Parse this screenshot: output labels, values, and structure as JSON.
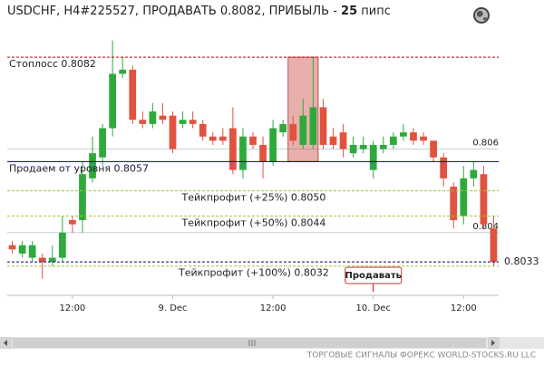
{
  "chart_data": {
    "type": "candlestick",
    "title": "USDCHF, H4#225527, ПРОДАВАТЬ 0.8082, ПРИБЫЛЬ - ",
    "title_bold": "25",
    "title_suffix": " пипс",
    "categories": [
      null,
      null,
      null,
      null,
      null,
      null,
      "12:00",
      null,
      null,
      null,
      null,
      null,
      null,
      null,
      null,
      null,
      "9. Dec",
      null,
      null,
      null,
      null,
      null,
      null,
      null,
      null,
      null,
      "12:00",
      null,
      null,
      null,
      null,
      null,
      null,
      null,
      null,
      null,
      "10. Dec",
      null,
      null,
      null,
      null,
      null,
      null,
      null,
      null,
      "12:00",
      null,
      null,
      null
    ],
    "open": [
      0.8037,
      0.8035,
      0.8034,
      0.8034,
      0.8033,
      0.8034,
      0.8043,
      0.8043,
      0.8053,
      0.8058,
      0.8065,
      0.8078,
      0.8079,
      0.8067,
      0.8066,
      0.8068,
      0.8068,
      0.8066,
      0.8067,
      0.8066,
      0.8063,
      0.8063,
      0.8065,
      0.8055,
      0.8063,
      0.8061,
      0.8057,
      0.8064,
      0.8066,
      0.8061,
      0.8061,
      0.807,
      0.8063,
      0.8064,
      0.8059,
      0.806,
      0.8055,
      0.806,
      0.8061,
      0.8063,
      0.8064,
      0.8063,
      0.8062,
      0.8058,
      0.8051,
      0.8044,
      0.8053,
      0.8054,
      0.8041
    ],
    "high": [
      0.8038,
      0.8038,
      0.8038,
      0.8035,
      0.8037,
      0.8044,
      0.8044,
      0.8057,
      0.8063,
      0.8066,
      0.8086,
      0.8082,
      0.808,
      0.8069,
      0.8071,
      0.8071,
      0.8069,
      0.8069,
      0.8069,
      0.8067,
      0.8064,
      0.8065,
      0.807,
      0.8065,
      0.8064,
      0.8063,
      0.8067,
      0.8067,
      0.8068,
      0.8072,
      0.8082,
      0.8072,
      0.8065,
      0.8066,
      0.8063,
      0.8063,
      0.8062,
      0.8063,
      0.8064,
      0.8066,
      0.8065,
      0.8064,
      0.8062,
      0.8059,
      0.8052,
      0.8056,
      0.8057,
      0.8056,
      0.8044
    ],
    "low": [
      0.8035,
      0.8034,
      0.8033,
      0.8029,
      0.8032,
      0.8033,
      0.804,
      0.804,
      0.8052,
      0.8056,
      0.8063,
      0.8077,
      0.8066,
      0.8065,
      0.8065,
      0.8066,
      0.8059,
      0.8065,
      0.8065,
      0.8062,
      0.8061,
      0.8061,
      0.8054,
      0.8053,
      0.806,
      0.8053,
      0.8056,
      0.8063,
      0.8061,
      0.806,
      0.806,
      0.806,
      0.806,
      0.8058,
      0.8058,
      0.8059,
      0.8053,
      0.8059,
      0.806,
      0.8062,
      0.8061,
      0.8061,
      0.8057,
      0.8051,
      0.8041,
      0.8042,
      0.8051,
      0.8041,
      0.8032
    ],
    "close": [
      0.8036,
      0.8037,
      0.8037,
      0.8033,
      0.8034,
      0.804,
      0.8042,
      0.8054,
      0.8059,
      0.8065,
      0.8078,
      0.8079,
      0.8067,
      0.8066,
      0.8069,
      0.8067,
      0.806,
      0.8067,
      0.8066,
      0.8063,
      0.8062,
      0.8062,
      0.8055,
      0.8063,
      0.8061,
      0.8057,
      0.8065,
      0.8066,
      0.8062,
      0.8068,
      0.807,
      0.8061,
      0.8061,
      0.806,
      0.8061,
      0.8061,
      0.8061,
      0.8061,
      0.8063,
      0.8064,
      0.8062,
      0.8062,
      0.8058,
      0.8053,
      0.8043,
      0.8053,
      0.8055,
      0.8042,
      0.8033
    ],
    "up_color": "#2eaa3c",
    "down_color": "#e0533f",
    "ylim": [
      0.8025,
      0.8087
    ],
    "yticks": [
      0.806,
      0.804
    ],
    "grid": true,
    "levels": [
      {
        "label": "Стоплосс 0.8082",
        "value": 0.8082,
        "color": "#c00000",
        "dash": true
      },
      {
        "label": "Продаем от уровня 0.8057",
        "value": 0.8057,
        "color": "#00008b",
        "dash": false
      },
      {
        "label": "Тейкпрофит (+25%) 0.8050",
        "value": 0.805,
        "color": "#99cc33",
        "dash": true
      },
      {
        "label": "Тейкпрофит (+50%) 0.8044",
        "value": 0.8044,
        "color": "#99cc33",
        "dash": true
      },
      {
        "label": "Тейкпрофит (+100%) 0.8032",
        "value": 0.8032,
        "color": "#99cc33",
        "dash": true
      }
    ],
    "current_price": 0.8033,
    "button": "Продавать",
    "footer": "ТОРГОВЫЕ СИГНАЛЫ ФОРЕКС WORLD-STOCKS.RU LLC"
  }
}
